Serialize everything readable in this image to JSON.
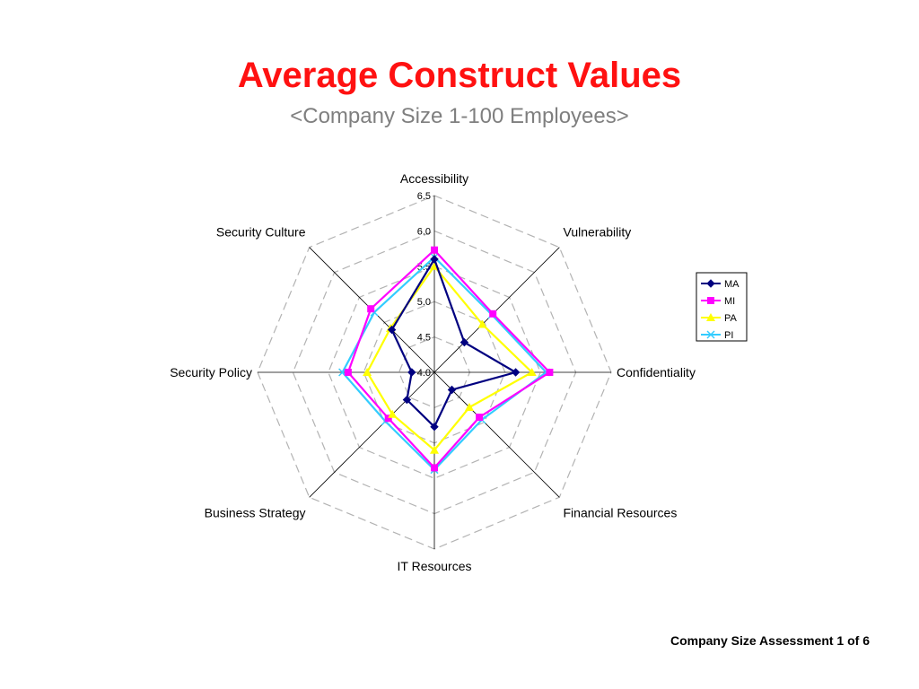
{
  "page": {
    "title": "Average Construct Values",
    "subtitle": "<Company Size 1-100 Employees>",
    "footer": "Company Size Assessment 1 of 6"
  },
  "chart_data": {
    "type": "radar",
    "title": "Average Construct Values",
    "subtitle": "<Company Size 1-100 Employees>",
    "categories": [
      "Accessibility",
      "Vulnerability",
      "Confidentiality",
      "Financial Resources",
      "IT Resources",
      "Business Strategy",
      "Security Policy",
      "Security Culture"
    ],
    "radial_ticks": [
      "4.0",
      "4.5",
      "5.0",
      "5.5",
      "6.0",
      "6.5"
    ],
    "rlim": [
      4.0,
      6.5
    ],
    "grid": true,
    "legend_position": "right",
    "series": [
      {
        "name": "MA",
        "color": "#000080",
        "marker": "diamond",
        "values": [
          5.6,
          4.6,
          5.15,
          4.35,
          4.77,
          4.55,
          4.32,
          4.85
        ]
      },
      {
        "name": "MI",
        "color": "#ff00ff",
        "marker": "square",
        "values": [
          5.73,
          5.17,
          5.63,
          4.9,
          5.35,
          4.92,
          5.22,
          5.27
        ]
      },
      {
        "name": "PA",
        "color": "#ffff00",
        "marker": "triangle",
        "values": [
          5.5,
          4.96,
          5.38,
          4.7,
          5.1,
          4.84,
          4.95,
          4.88
        ]
      },
      {
        "name": "PI",
        "color": "#33ccff",
        "marker": "x",
        "values": [
          5.63,
          5.15,
          5.58,
          4.95,
          5.38,
          4.98,
          5.3,
          5.2
        ]
      }
    ]
  }
}
